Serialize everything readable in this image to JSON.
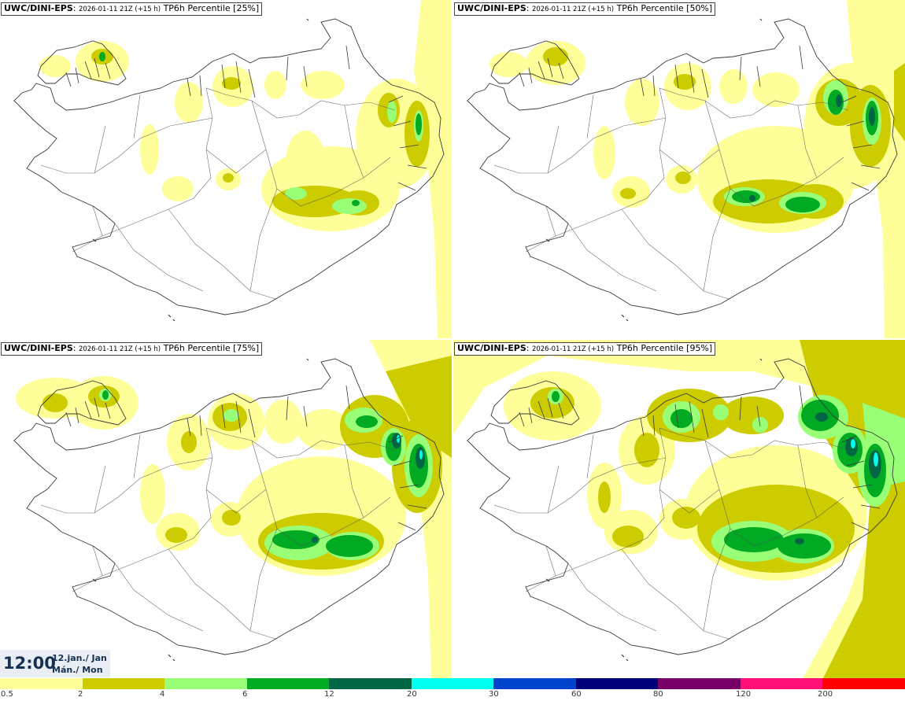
{
  "panels": [
    {
      "model": "UWC/DINI-EPS",
      "run": "2026-01-11 21Z (+15 h)",
      "product": "TP6h Percentile [25%]",
      "level": 0
    },
    {
      "model": "UWC/DINI-EPS",
      "run": "2026-01-11 21Z (+15 h)",
      "product": "TP6h Percentile [50%]",
      "level": 1
    },
    {
      "model": "UWC/DINI-EPS",
      "run": "2026-01-11 21Z (+15 h)",
      "product": "TP6h Percentile [75%]",
      "level": 2
    },
    {
      "model": "UWC/DINI-EPS",
      "run": "2026-01-11 21Z (+15 h)",
      "product": "TP6h Percentile [95%]",
      "level": 3
    }
  ],
  "time": {
    "clock": "12:00",
    "date": "12.jan./ Jan",
    "weekday": "Mán./ Mon"
  },
  "legend": {
    "colors": [
      "#ffff99",
      "#cccc00",
      "#99ff77",
      "#00aa22",
      "#006644",
      "#00ffee",
      "#0044cc",
      "#000077",
      "#770066",
      "#ff1177",
      "#ff0000"
    ],
    "labels": [
      "0.5",
      "2",
      "4",
      "6",
      "12",
      "20",
      "30",
      "60",
      "80",
      "120",
      "200"
    ]
  },
  "styles": {
    "coast": "#3a3a3a",
    "roads": "#555555"
  }
}
